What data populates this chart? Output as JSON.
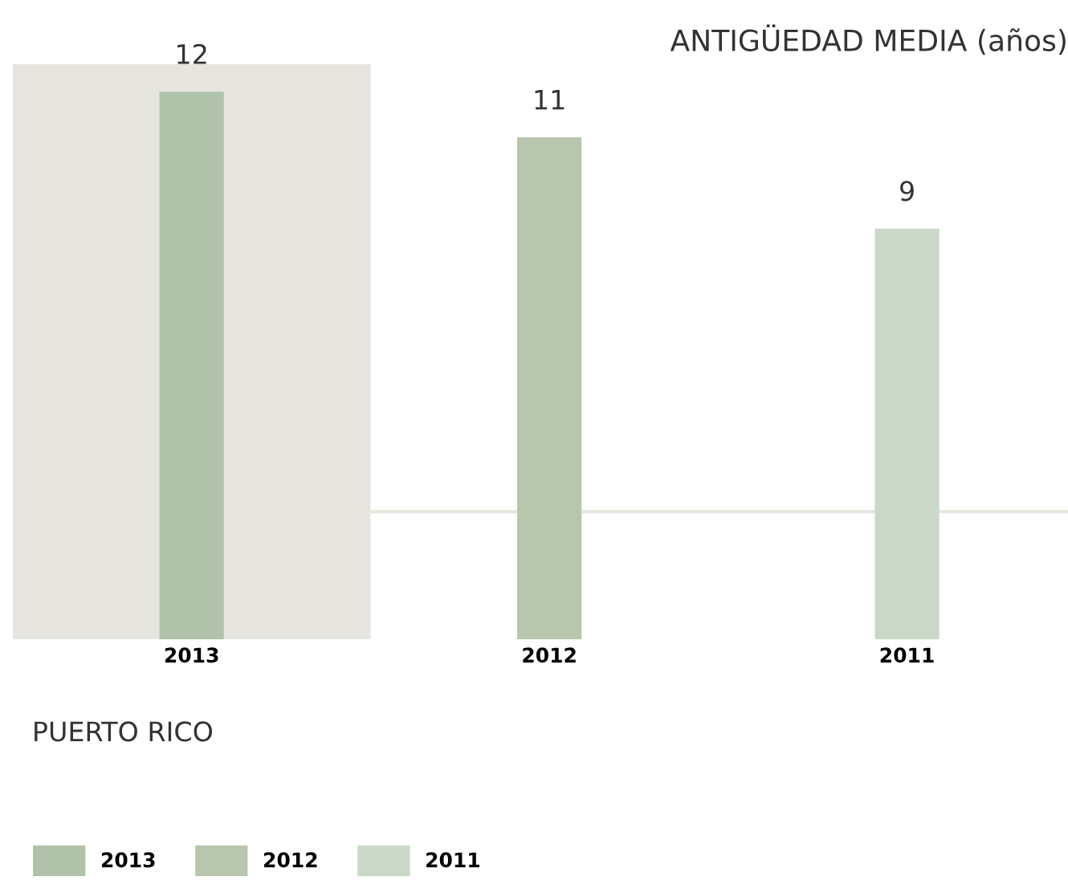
{
  "chart_data": {
    "type": "bar",
    "title": "ANTIGÜEDAD MEDIA (años)",
    "subtitle": "PUERTO RICO",
    "categories": [
      "2013",
      "2012",
      "2011"
    ],
    "series": [
      {
        "name": "2013",
        "color": "#b1c2aa",
        "values": [
          12,
          null,
          null
        ]
      },
      {
        "name": "2012",
        "color": "#b8c6ad",
        "values": [
          null,
          11,
          null
        ]
      },
      {
        "name": "2011",
        "color": "#c9d8c7",
        "values": [
          null,
          null,
          9
        ]
      }
    ],
    "data_labels": true,
    "legend": "bottom left",
    "tick_labels": "x",
    "grid": false,
    "bands": [
      {
        "axis": "x",
        "from": "2013",
        "to": "2013",
        "color": "#e6e5df"
      }
    ],
    "ref_lines": [
      {
        "axis": "y",
        "value": 2.8,
        "color": "#e8e6df"
      }
    ]
  }
}
